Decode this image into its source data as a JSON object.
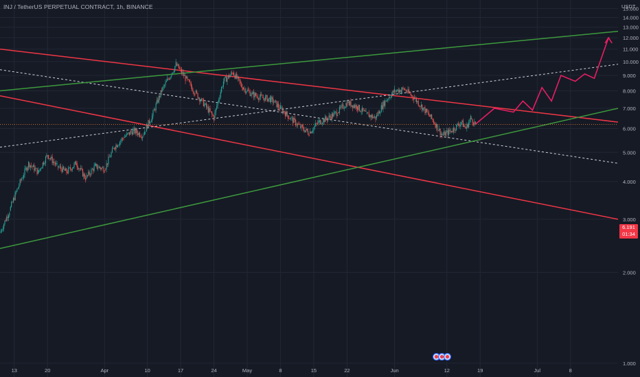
{
  "header": {
    "title": "INJ / TetherUS PERPETUAL CONTRACT, 1h, BINANCE",
    "unit": "USDT"
  },
  "price_label": {
    "price": "6.191",
    "countdown": "01:34"
  },
  "colors": {
    "background": "#161a25",
    "up": "#26a69a",
    "down": "#ef5350",
    "channel_red": "#f23645",
    "channel_green": "#3d9b3d",
    "midline": "#d1d4dc",
    "projection": "#e91e63",
    "price_line": "#e07a2d"
  },
  "chart_data": {
    "type": "candlestick",
    "y_scale": "log",
    "ylim": [
      0.9,
      16
    ],
    "xlim": [
      "2023-03-10",
      "2023-07-18"
    ],
    "y_ticks": [
      "15.000",
      "14.000",
      "13.000",
      "12.000",
      "11.000",
      "10.000",
      "9.000",
      "8.000",
      "7.000",
      "6.000",
      "5.000",
      "4.000",
      "3.000",
      "2.000",
      "1.000"
    ],
    "x_ticks": [
      "13",
      "20",
      "Apr",
      "10",
      "17",
      "24",
      "May",
      "8",
      "15",
      "22",
      "Jun",
      "12",
      "19",
      "Jul",
      "8"
    ],
    "price_path": [
      [
        "2023-03-10",
        2.7
      ],
      [
        "2023-03-12",
        3.2
      ],
      [
        "2023-03-14",
        3.9
      ],
      [
        "2023-03-16",
        4.6
      ],
      [
        "2023-03-18",
        4.3
      ],
      [
        "2023-03-20",
        4.9
      ],
      [
        "2023-03-22",
        4.5
      ],
      [
        "2023-03-24",
        4.3
      ],
      [
        "2023-03-26",
        4.6
      ],
      [
        "2023-03-28",
        4.1
      ],
      [
        "2023-03-30",
        4.5
      ],
      [
        "2023-04-01",
        4.4
      ],
      [
        "2023-04-03",
        5.2
      ],
      [
        "2023-04-05",
        5.6
      ],
      [
        "2023-04-07",
        5.9
      ],
      [
        "2023-04-09",
        5.7
      ],
      [
        "2023-04-11",
        6.6
      ],
      [
        "2023-04-13",
        8.0
      ],
      [
        "2023-04-15",
        9.1
      ],
      [
        "2023-04-16",
        9.8
      ],
      [
        "2023-04-18",
        8.8
      ],
      [
        "2023-04-20",
        7.9
      ],
      [
        "2023-04-22",
        7.2
      ],
      [
        "2023-04-24",
        6.5
      ],
      [
        "2023-04-26",
        8.6
      ],
      [
        "2023-04-28",
        9.2
      ],
      [
        "2023-04-30",
        8.2
      ],
      [
        "2023-05-02",
        7.8
      ],
      [
        "2023-05-04",
        7.6
      ],
      [
        "2023-05-06",
        7.5
      ],
      [
        "2023-05-08",
        7.0
      ],
      [
        "2023-05-10",
        6.5
      ],
      [
        "2023-05-12",
        6.1
      ],
      [
        "2023-05-14",
        5.8
      ],
      [
        "2023-05-16",
        6.3
      ],
      [
        "2023-05-18",
        6.5
      ],
      [
        "2023-05-20",
        6.8
      ],
      [
        "2023-05-22",
        7.3
      ],
      [
        "2023-05-24",
        7.1
      ],
      [
        "2023-05-26",
        6.7
      ],
      [
        "2023-05-28",
        6.5
      ],
      [
        "2023-05-30",
        7.4
      ],
      [
        "2023-06-01",
        8.0
      ],
      [
        "2023-06-03",
        8.1
      ],
      [
        "2023-06-05",
        7.6
      ],
      [
        "2023-06-07",
        7.0
      ],
      [
        "2023-06-09",
        6.4
      ],
      [
        "2023-06-11",
        5.7
      ],
      [
        "2023-06-13",
        5.9
      ],
      [
        "2023-06-15",
        6.3
      ],
      [
        "2023-06-16",
        6.0
      ],
      [
        "2023-06-17",
        6.5
      ],
      [
        "2023-06-18",
        6.2
      ]
    ],
    "projection": [
      [
        "2023-06-18",
        6.2
      ],
      [
        "2023-06-22",
        7.0
      ],
      [
        "2023-06-26",
        6.8
      ],
      [
        "2023-06-28",
        7.4
      ],
      [
        "2023-06-30",
        6.9
      ],
      [
        "2023-07-02",
        8.2
      ],
      [
        "2023-07-04",
        7.4
      ],
      [
        "2023-07-06",
        9.0
      ],
      [
        "2023-07-09",
        8.6
      ],
      [
        "2023-07-11",
        9.1
      ],
      [
        "2023-07-13",
        8.8
      ],
      [
        "2023-07-16",
        12.0
      ]
    ],
    "channel_red_upper": [
      [
        "2023-03-10",
        11.0
      ],
      [
        "2023-07-18",
        6.3
      ]
    ],
    "channel_red_lower": [
      [
        "2023-03-10",
        7.7
      ],
      [
        "2023-07-18",
        3.0
      ]
    ],
    "channel_red_mid": [
      [
        "2023-03-10",
        9.4
      ],
      [
        "2023-07-18",
        4.6
      ]
    ],
    "channel_green_upper": [
      [
        "2023-03-10",
        8.0
      ],
      [
        "2023-07-18",
        12.6
      ]
    ],
    "channel_green_lower": [
      [
        "2023-03-10",
        2.4
      ],
      [
        "2023-07-18",
        7.0
      ]
    ],
    "channel_green_mid": [
      [
        "2023-03-10",
        5.2
      ],
      [
        "2023-07-18",
        9.8
      ]
    ],
    "current_price_line": 6.191
  }
}
